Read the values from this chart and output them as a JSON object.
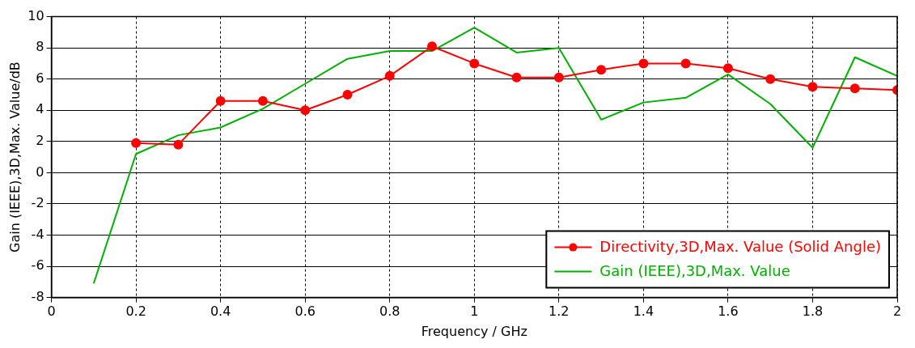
{
  "chart_data": {
    "type": "line",
    "xlabel": "Frequency / GHz",
    "ylabel": "Gain (IEEE),3D,Max. Value/dB",
    "x": [
      0.2,
      0.3,
      0.4,
      0.5,
      0.6,
      0.7,
      0.8,
      0.9,
      1.0,
      1.1,
      1.2,
      1.3,
      1.4,
      1.5,
      1.6,
      1.7,
      1.8,
      1.9,
      2.0
    ],
    "series": [
      {
        "name": "Directivity,3D,Max. Value (Solid Angle)",
        "color": "#ff0000",
        "marker": "circle",
        "values": [
          1.9,
          1.8,
          4.6,
          4.6,
          4.0,
          5.0,
          6.2,
          8.1,
          7.0,
          6.1,
          6.1,
          6.6,
          7.0,
          7.0,
          6.7,
          6.0,
          5.5,
          5.4,
          5.3
        ]
      },
      {
        "name": "Gain (IEEE),3D,Max. Value",
        "color": "#00b000",
        "marker": "none",
        "x": [
          0.1,
          0.2,
          0.3,
          0.4,
          0.5,
          0.6,
          0.7,
          0.8,
          0.9,
          1.0,
          1.1,
          1.2,
          1.3,
          1.4,
          1.5,
          1.6,
          1.7,
          1.8,
          1.9,
          2.0
        ],
        "values": [
          -7.1,
          1.2,
          2.4,
          2.9,
          4.1,
          5.7,
          7.3,
          7.8,
          7.8,
          9.3,
          7.7,
          8.0,
          3.4,
          4.5,
          4.8,
          6.3,
          4.4,
          1.6,
          7.4,
          6.2
        ]
      }
    ],
    "xlim": [
      0,
      2
    ],
    "xticks": [
      0,
      0.2,
      0.4,
      0.6,
      0.8,
      1,
      1.2,
      1.4,
      1.6,
      1.8,
      2
    ],
    "ylim": [
      -8,
      10
    ],
    "yticks": [
      -8,
      -6,
      -4,
      -2,
      0,
      2,
      4,
      6,
      8,
      10
    ],
    "grid": true,
    "legend": "bottom right",
    "line_style": "solid"
  }
}
